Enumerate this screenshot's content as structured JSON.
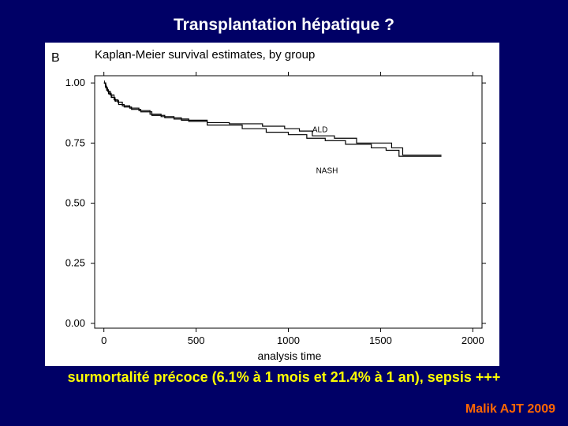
{
  "slide": {
    "title": "Transplantation hépatique ?",
    "caption": "surmortalité précoce (6.1% à 1 mois et 21.4% à 1 an), sepsis +++",
    "reference": "Malik AJT 2009"
  },
  "colors": {
    "background": "#000066",
    "title": "#ffffff",
    "caption": "#ffff00",
    "reference": "#ff6600",
    "curve": "#000000"
  },
  "chart_data": {
    "type": "line",
    "panel_label": "B",
    "title": "Kaplan-Meier survival estimates, by group",
    "xlabel": "analysis time",
    "ylabel": "",
    "xlim": [
      -50,
      2050
    ],
    "ylim": [
      -0.02,
      1.03
    ],
    "x_ticks": [
      0,
      500,
      1000,
      1500,
      2000
    ],
    "x_tick_labels": [
      "0",
      "500",
      "1000",
      "1500",
      "2000"
    ],
    "y_ticks": [
      0,
      0.25,
      0.5,
      0.75,
      1.0
    ],
    "y_tick_labels": [
      "0.00",
      "0.25",
      "0.50",
      "0.75",
      "1.00"
    ],
    "grid": false,
    "series": [
      {
        "name": "ALD",
        "x": [
          0,
          8,
          15,
          25,
          40,
          60,
          80,
          110,
          150,
          200,
          260,
          330,
          420,
          560,
          680,
          860,
          980,
          1060,
          1130,
          1250,
          1370,
          1560,
          1620,
          1830
        ],
        "y": [
          1.0,
          0.985,
          0.97,
          0.955,
          0.94,
          0.925,
          0.91,
          0.9,
          0.89,
          0.88,
          0.865,
          0.855,
          0.845,
          0.835,
          0.83,
          0.82,
          0.81,
          0.8,
          0.78,
          0.77,
          0.75,
          0.73,
          0.7,
          0.7
        ]
      },
      {
        "name": "NASH",
        "x": [
          0,
          10,
          20,
          35,
          55,
          75,
          100,
          140,
          190,
          250,
          310,
          380,
          460,
          560,
          750,
          880,
          1000,
          1100,
          1200,
          1310,
          1450,
          1530,
          1600,
          1830
        ],
        "y": [
          1.0,
          0.98,
          0.965,
          0.95,
          0.93,
          0.92,
          0.905,
          0.895,
          0.885,
          0.87,
          0.86,
          0.85,
          0.84,
          0.825,
          0.81,
          0.795,
          0.785,
          0.77,
          0.76,
          0.745,
          0.73,
          0.72,
          0.695,
          0.695
        ]
      }
    ],
    "annotations": [
      {
        "text": "ALD",
        "x": 1130,
        "y": 0.795
      },
      {
        "text": "NASH",
        "x": 1150,
        "y": 0.625
      }
    ]
  }
}
